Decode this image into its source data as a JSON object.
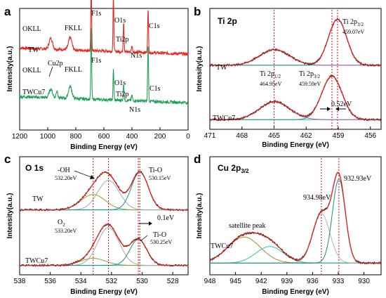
{
  "chart_data": [
    {
      "id": "a",
      "type": "line",
      "panel_label": "a",
      "xlabel": "Binding Energy (eV)",
      "ylabel": "Intensity(a.u.)",
      "xlim": [
        1200,
        0
      ],
      "x_ticks": [
        "1200",
        "1000",
        "800",
        "600",
        "400",
        "200",
        "0"
      ],
      "x_tick_values": [
        1200,
        1000,
        800,
        600,
        400,
        200,
        0
      ],
      "ylim": [
        0,
        1
      ],
      "series": [
        {
          "name": "TW",
          "color": "#e8261e",
          "baseline": 0.65,
          "peaks": [
            [
              978,
              0.09,
              12
            ],
            [
              840,
              0.1,
              12
            ],
            [
              690,
              0.52,
              3
            ],
            [
              532,
              0.45,
              3
            ],
            [
              459,
              0.25,
              3
            ],
            [
              400,
              0.05,
              4
            ],
            [
              285,
              0.36,
              3
            ]
          ]
        },
        {
          "name": "TWCu7",
          "color": "#1fa35a",
          "baseline": 0.25,
          "peaks": [
            [
              978,
              0.07,
              12
            ],
            [
              934,
              0.06,
              6
            ],
            [
              840,
              0.1,
              12
            ],
            [
              690,
              0.58,
              3
            ],
            [
              532,
              0.25,
              3
            ],
            [
              459,
              0.14,
              3
            ],
            [
              400,
              0.04,
              4
            ],
            [
              285,
              0.47,
              3
            ]
          ]
        }
      ],
      "annotations": [
        "OKLL",
        "FKLL",
        "F1s",
        "O1s",
        "Ti2p",
        "N1s",
        "C1s",
        "TW",
        "OKLL",
        "Cu2p",
        "FKLL",
        "F1s",
        "O1s",
        "Ti2p",
        "N1s",
        "C1s",
        "TWCu7"
      ]
    },
    {
      "id": "b",
      "type": "line",
      "panel_label": "b",
      "title": "Ti 2p",
      "xlabel": "Binding Energy (eV)",
      "ylabel": "Intensity(a.u.)",
      "xlim": [
        471,
        455
      ],
      "x_ticks": [
        "471",
        "468",
        "465",
        "462",
        "459",
        "456"
      ],
      "x_tick_values": [
        471,
        468,
        465,
        462,
        459,
        456
      ],
      "ylim": [
        0,
        1
      ],
      "reference_lines": [
        465.0,
        459.59,
        459.07
      ],
      "series": [
        {
          "name": "TW",
          "baseline": 0.53,
          "components": [
            [
              464.95,
              0.13,
              1.4
            ],
            [
              459.07,
              0.38,
              0.85
            ]
          ]
        },
        {
          "name": "TWCu7",
          "baseline": 0.08,
          "components": [
            [
              464.95,
              0.15,
              1.4
            ],
            [
              459.59,
              0.36,
              0.95
            ]
          ]
        }
      ],
      "annotations": [
        "Ti 2p3/2",
        "459.07eV",
        "Ti 2p1/2",
        "464.95eV",
        "Ti 2p3/2",
        "459.59eV",
        "0.52eV",
        "TW",
        "TWCu7"
      ]
    },
    {
      "id": "c",
      "type": "line",
      "panel_label": "c",
      "title": "O 1s",
      "xlabel": "Binding Energy (eV)",
      "ylabel": "Intensity(a.u.)",
      "xlim": [
        538,
        527
      ],
      "x_ticks": [
        "538",
        "536",
        "534",
        "532",
        "530",
        "528"
      ],
      "x_tick_values": [
        538,
        536,
        534,
        532,
        530,
        528
      ],
      "ylim": [
        0,
        1
      ],
      "reference_lines": [
        533.2,
        532.2,
        530.25,
        530.15
      ],
      "series": [
        {
          "name": "TW",
          "baseline": 0.55,
          "components": [
            [
              533.2,
              0.13,
              0.8
            ],
            [
              532.2,
              0.25,
              0.7
            ],
            [
              530.15,
              0.32,
              0.55
            ]
          ]
        },
        {
          "name": "TWCu7",
          "baseline": 0.08,
          "components": [
            [
              533.2,
              0.06,
              0.8
            ],
            [
              532.2,
              0.32,
              0.7
            ],
            [
              530.25,
              0.22,
              0.55
            ]
          ]
        }
      ],
      "annotations": [
        "-OH",
        "532.20eV",
        "Ti-O",
        "530.15eV",
        "O2",
        "533.20eV",
        "0.1eV",
        "Ti-O",
        "530.25eV",
        "TW",
        "TWCu7"
      ]
    },
    {
      "id": "d",
      "type": "line",
      "panel_label": "d",
      "title": "Cu 2p3/2",
      "xlabel": "Binding Energy (eV)",
      "ylabel": "Intensity(a.u.)",
      "xlim": [
        948,
        928
      ],
      "x_ticks": [
        "948",
        "945",
        "942",
        "939",
        "936",
        "933",
        "930"
      ],
      "x_tick_values": [
        948,
        945,
        942,
        939,
        936,
        933,
        930
      ],
      "ylim": [
        0,
        1
      ],
      "reference_lines": [
        934.98,
        932.93
      ],
      "series": [
        {
          "name": "TWCu7",
          "baseline": 0.1,
          "components": [
            [
              944.0,
              0.22,
              1.9
            ],
            [
              941.0,
              0.14,
              1.6
            ],
            [
              934.98,
              0.42,
              1.0
            ],
            [
              932.93,
              0.71,
              0.75
            ]
          ]
        }
      ],
      "annotations": [
        "satellite peak",
        "934.98eV",
        "932.93eV",
        "TWCu7"
      ]
    }
  ]
}
